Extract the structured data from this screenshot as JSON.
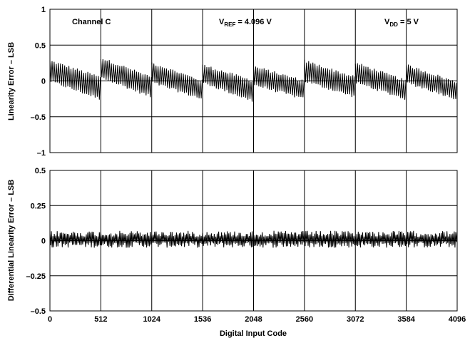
{
  "chart_data": [
    {
      "type": "line",
      "ylabel": "Linearity Error – LSB",
      "xlabel": "",
      "xlim": [
        0,
        4096
      ],
      "ylim": [
        -1,
        1
      ],
      "x_ticks": [
        "0",
        "512",
        "1024",
        "1536",
        "2048",
        "2560",
        "3072",
        "3584",
        "4096"
      ],
      "y_ticks": [
        "1",
        "0.5",
        "0",
        "–0.5",
        "–1"
      ],
      "x_tick_values": [
        0,
        512,
        1024,
        1536,
        2048,
        2560,
        3072,
        3584,
        4096
      ],
      "y_tick_values": [
        1,
        0.5,
        0,
        -0.5,
        -1
      ],
      "grid": true,
      "annotations": [
        {
          "text": "Channel C"
        },
        {
          "main": "V",
          "sub": "REF",
          "rest": " = 4.096 V"
        },
        {
          "main": "V",
          "sub": "DD",
          "rest": " = 5 V"
        }
      ],
      "segments": [
        {
          "x_start": 0,
          "x_end": 512,
          "y_start_top": 0.28,
          "y_start_bottom": 0.0,
          "y_end_top": 0.05,
          "y_end_bottom": -0.25
        },
        {
          "x_start": 512,
          "x_end": 1024,
          "y_start_top": 0.32,
          "y_start_bottom": 0.05,
          "y_end_top": 0.05,
          "y_end_bottom": -0.22
        },
        {
          "x_start": 1024,
          "x_end": 1536,
          "y_start_top": 0.25,
          "y_start_bottom": -0.02,
          "y_end_top": 0.0,
          "y_end_bottom": -0.25
        },
        {
          "x_start": 1536,
          "x_end": 2048,
          "y_start_top": 0.22,
          "y_start_bottom": -0.02,
          "y_end_top": 0.0,
          "y_end_bottom": -0.28
        },
        {
          "x_start": 2048,
          "x_end": 2560,
          "y_start_top": 0.2,
          "y_start_bottom": -0.05,
          "y_end_top": 0.0,
          "y_end_bottom": -0.25
        },
        {
          "x_start": 2560,
          "x_end": 3072,
          "y_start_top": 0.28,
          "y_start_bottom": 0.0,
          "y_end_top": 0.05,
          "y_end_bottom": -0.22
        },
        {
          "x_start": 3072,
          "x_end": 3584,
          "y_start_top": 0.25,
          "y_start_bottom": -0.02,
          "y_end_top": 0.0,
          "y_end_bottom": -0.25
        },
        {
          "x_start": 3584,
          "x_end": 4096,
          "y_start_top": 0.22,
          "y_start_bottom": -0.02,
          "y_end_top": -0.02,
          "y_end_bottom": -0.25
        }
      ]
    },
    {
      "type": "line",
      "ylabel": "Differential Linearity Error – LSB",
      "xlabel": "Digital Input Code",
      "xlim": [
        0,
        4096
      ],
      "ylim": [
        -0.5,
        0.5
      ],
      "x_ticks": [
        "0",
        "512",
        "1024",
        "1536",
        "2048",
        "2560",
        "3072",
        "3584",
        "4096"
      ],
      "y_ticks": [
        "0.5",
        "0.25",
        "0",
        "–0.25",
        "–0.5"
      ],
      "x_tick_values": [
        0,
        512,
        1024,
        1536,
        2048,
        2560,
        3072,
        3584,
        4096
      ],
      "y_tick_values": [
        0.5,
        0.25,
        0,
        -0.25,
        -0.5
      ],
      "grid": true,
      "band": {
        "top": 0.07,
        "bottom": -0.05
      }
    }
  ]
}
